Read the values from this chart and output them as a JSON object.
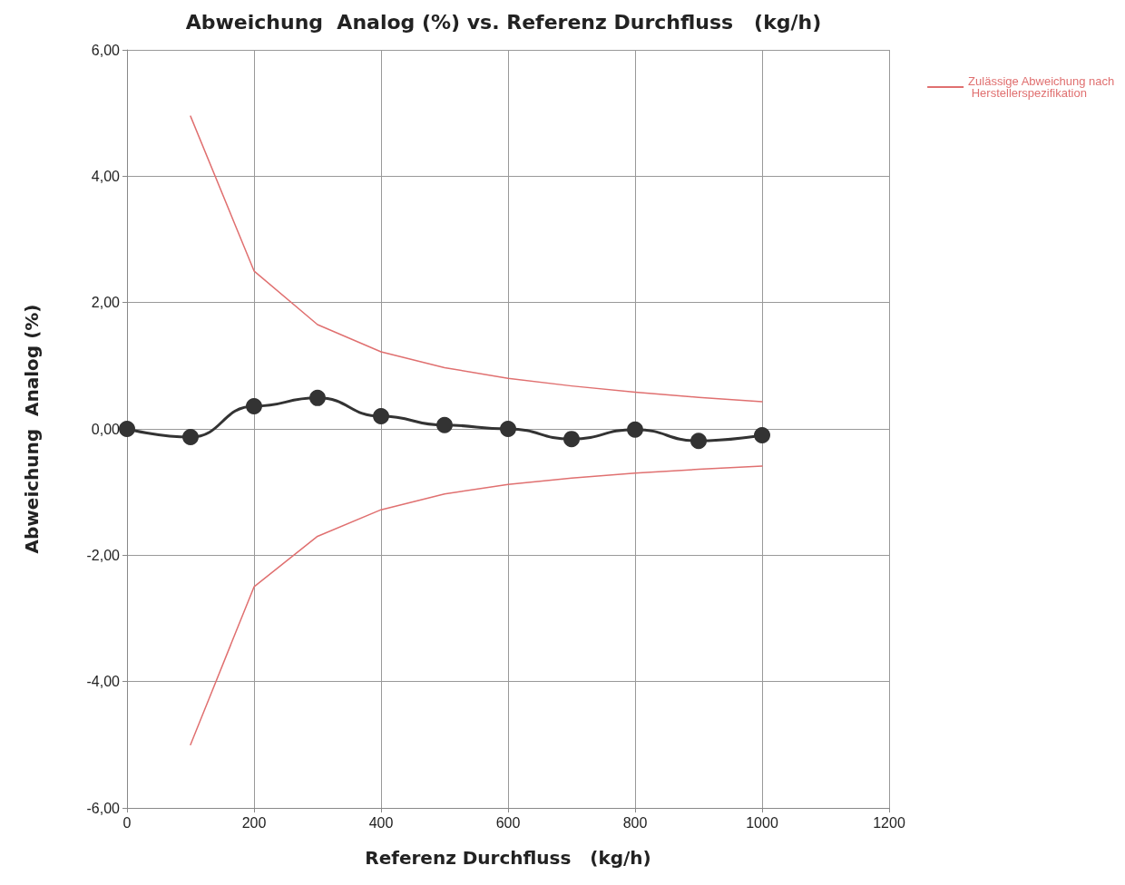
{
  "chart_data": {
    "type": "line",
    "title": "Abweichung  Analog (%) vs. Referenz Durchfluss   (kg/h)",
    "xlabel": "Referenz Durchfluss   (kg/h)",
    "ylabel": "Abweichung  Analog (%)",
    "x": [
      0,
      100,
      200,
      300,
      400,
      500,
      600,
      700,
      800,
      900,
      1000
    ],
    "series": [
      {
        "color": "#333333",
        "marker": "circle",
        "values": [
          0.0,
          -0.13,
          0.36,
          0.49,
          0.2,
          0.06,
          0.0,
          -0.16,
          -0.01,
          -0.19,
          -0.1
        ]
      },
      {
        "name": "Zulässige Abweichung nach Herstellerspezifikation",
        "color": "#e07070",
        "marker": "none",
        "x": [
          100,
          200,
          300,
          400,
          500,
          600,
          700,
          800,
          900,
          1000
        ],
        "values": [
          4.95,
          2.5,
          1.65,
          1.22,
          0.97,
          0.8,
          0.68,
          0.58,
          0.5,
          0.43
        ]
      },
      {
        "color": "#e07070",
        "marker": "none",
        "x": [
          100,
          200,
          300,
          400,
          500,
          600,
          700,
          800,
          900,
          1000
        ],
        "values": [
          -5.0,
          -2.5,
          -1.7,
          -1.28,
          -1.03,
          -0.88,
          -0.78,
          -0.7,
          -0.64,
          -0.59
        ]
      }
    ],
    "xlim": [
      0,
      1200
    ],
    "xticks": [
      0,
      200,
      400,
      600,
      800,
      1000,
      1200
    ],
    "ylim": [
      -6,
      6
    ],
    "yticks": [
      {
        "value": -6,
        "label": "-6,00"
      },
      {
        "value": -4,
        "label": "-4,00"
      },
      {
        "value": -2,
        "label": "-2,00"
      },
      {
        "value": 0,
        "label": "0,00"
      },
      {
        "value": 2,
        "label": "2,00"
      },
      {
        "value": 4,
        "label": "4,00"
      },
      {
        "value": 6,
        "label": "6,00"
      }
    ],
    "grid": true,
    "legend": "top right"
  }
}
